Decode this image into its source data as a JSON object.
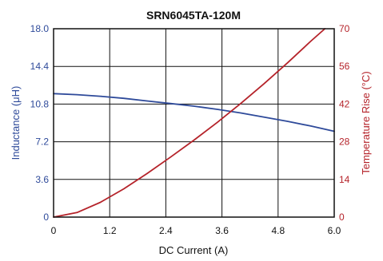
{
  "chart_data": {
    "type": "line",
    "title": "SRN6045TA-120M",
    "xlabel": "DC Current (A)",
    "x_ticks": [
      "0",
      "1.2",
      "2.4",
      "3.6",
      "4.8",
      "6.0"
    ],
    "xlim": [
      0,
      6.0
    ],
    "y_left": {
      "label": "Inductance (μH)",
      "ticks": [
        "0",
        "3.6",
        "7.2",
        "10.8",
        "14.4",
        "18.0"
      ],
      "ylim": [
        0,
        18.0
      ],
      "color": "#2e4a9a"
    },
    "y_right": {
      "label": "Temperature Rise (°C)",
      "ticks": [
        "0",
        "14",
        "28",
        "42",
        "56",
        "70"
      ],
      "ylim": [
        0,
        70
      ],
      "color": "#b5232a"
    },
    "grid": true,
    "series": [
      {
        "axis": "left",
        "color": "#2e4a9a",
        "x": [
          0,
          0.5,
          1.0,
          1.5,
          2.0,
          2.5,
          3.0,
          3.5,
          4.0,
          4.5,
          5.0,
          5.5,
          6.0
        ],
        "y": [
          11.8,
          11.7,
          11.55,
          11.35,
          11.1,
          10.85,
          10.6,
          10.3,
          9.95,
          9.55,
          9.15,
          8.7,
          8.2
        ]
      },
      {
        "axis": "right",
        "color": "#b5232a",
        "x": [
          0,
          0.5,
          1.0,
          1.5,
          2.0,
          2.5,
          3.0,
          3.5,
          4.0,
          4.5,
          5.0,
          5.5,
          5.8
        ],
        "y": [
          0,
          1.7,
          5.5,
          10.5,
          16.2,
          22.3,
          28.6,
          35.2,
          42.2,
          49.6,
          57.3,
          65.4,
          70.0
        ]
      }
    ]
  }
}
